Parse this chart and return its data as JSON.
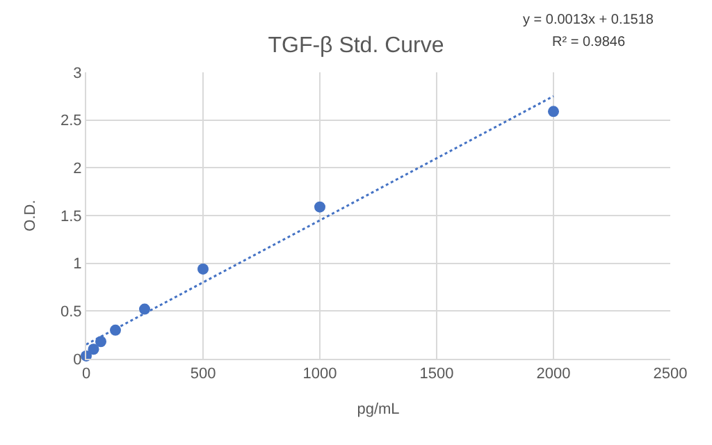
{
  "chart_data": {
    "type": "scatter",
    "title": "TGF-β Std. Curve",
    "xlabel": "pg/mL",
    "ylabel": "O.D.",
    "annotations": [
      "y = 0.0013x + 0.1518",
      "R² = 0.9846"
    ],
    "series": [
      {
        "color": "#4472c4",
        "marker": "circle",
        "x": [
          0,
          31.25,
          62.5,
          125,
          250,
          500,
          1000,
          2000
        ],
        "values": [
          0.03,
          0.1,
          0.18,
          0.3,
          0.52,
          0.94,
          1.59,
          2.59
        ]
      },
      {
        "type": "line",
        "color": "#4472c4",
        "line_style": "dotted",
        "marker": "none",
        "x": [
          0,
          2000
        ],
        "values": [
          0.15,
          2.75
        ]
      }
    ],
    "xlim": [
      0,
      2500
    ],
    "xticks": [
      0,
      500,
      1000,
      1500,
      2000,
      2500
    ],
    "ylim": [
      0,
      3
    ],
    "yticks": [
      0,
      0.5,
      1,
      1.5,
      2,
      2.5,
      3
    ],
    "grid": true
  }
}
